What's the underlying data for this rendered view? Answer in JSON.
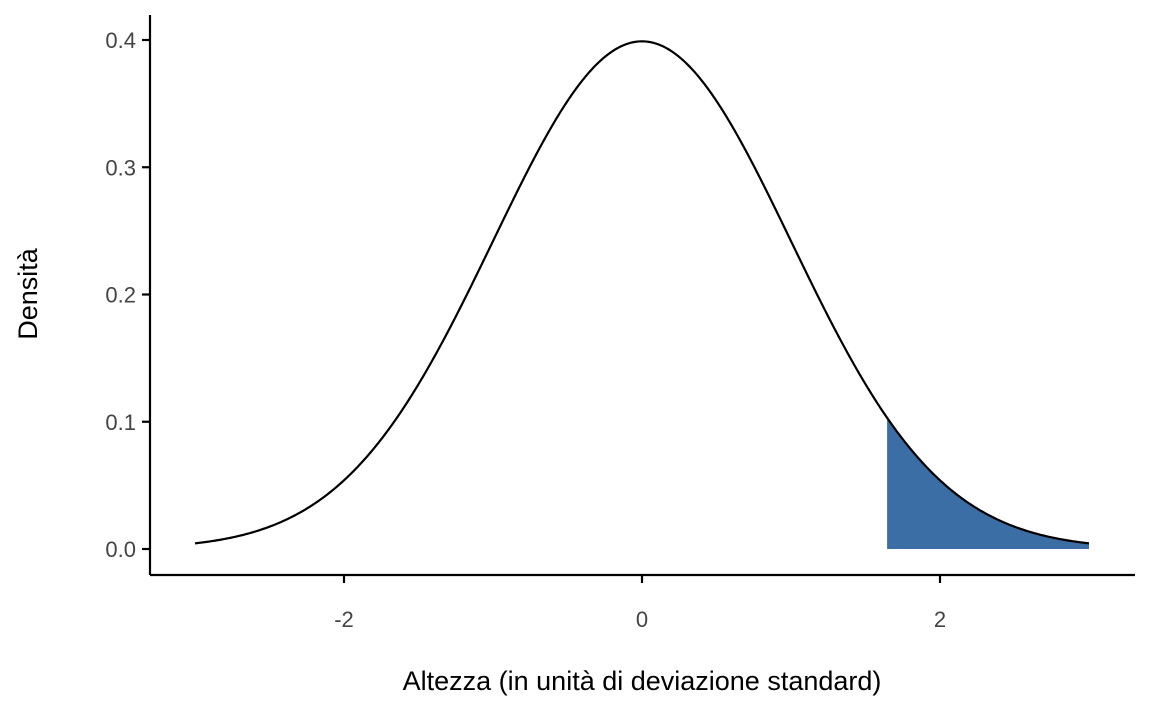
{
  "chart_data": {
    "type": "area",
    "title": "",
    "xlabel": "Altezza (in unità di deviazione standard)",
    "ylabel": "Densità",
    "xlim": [
      -3.3,
      3.3
    ],
    "ylim": [
      -0.02,
      0.42
    ],
    "x_ticks": [
      -2,
      0,
      2
    ],
    "x_tick_labels": [
      "-2",
      "0",
      "2"
    ],
    "y_ticks": [
      0.0,
      0.1,
      0.2,
      0.3,
      0.4
    ],
    "y_tick_labels": [
      "0.0",
      "0.1",
      "0.2",
      "0.3",
      "0.4"
    ],
    "grid": false,
    "legend": "none",
    "series": [
      {
        "kind": "line",
        "distribution": "normal",
        "mean": 0,
        "sd": 1,
        "x_range": [
          -3,
          3
        ],
        "color": "#000000"
      },
      {
        "kind": "shaded-area",
        "distribution": "normal",
        "mean": 0,
        "sd": 1,
        "x_range": [
          1.645,
          3
        ],
        "color": "#3A6EA5"
      }
    ]
  }
}
